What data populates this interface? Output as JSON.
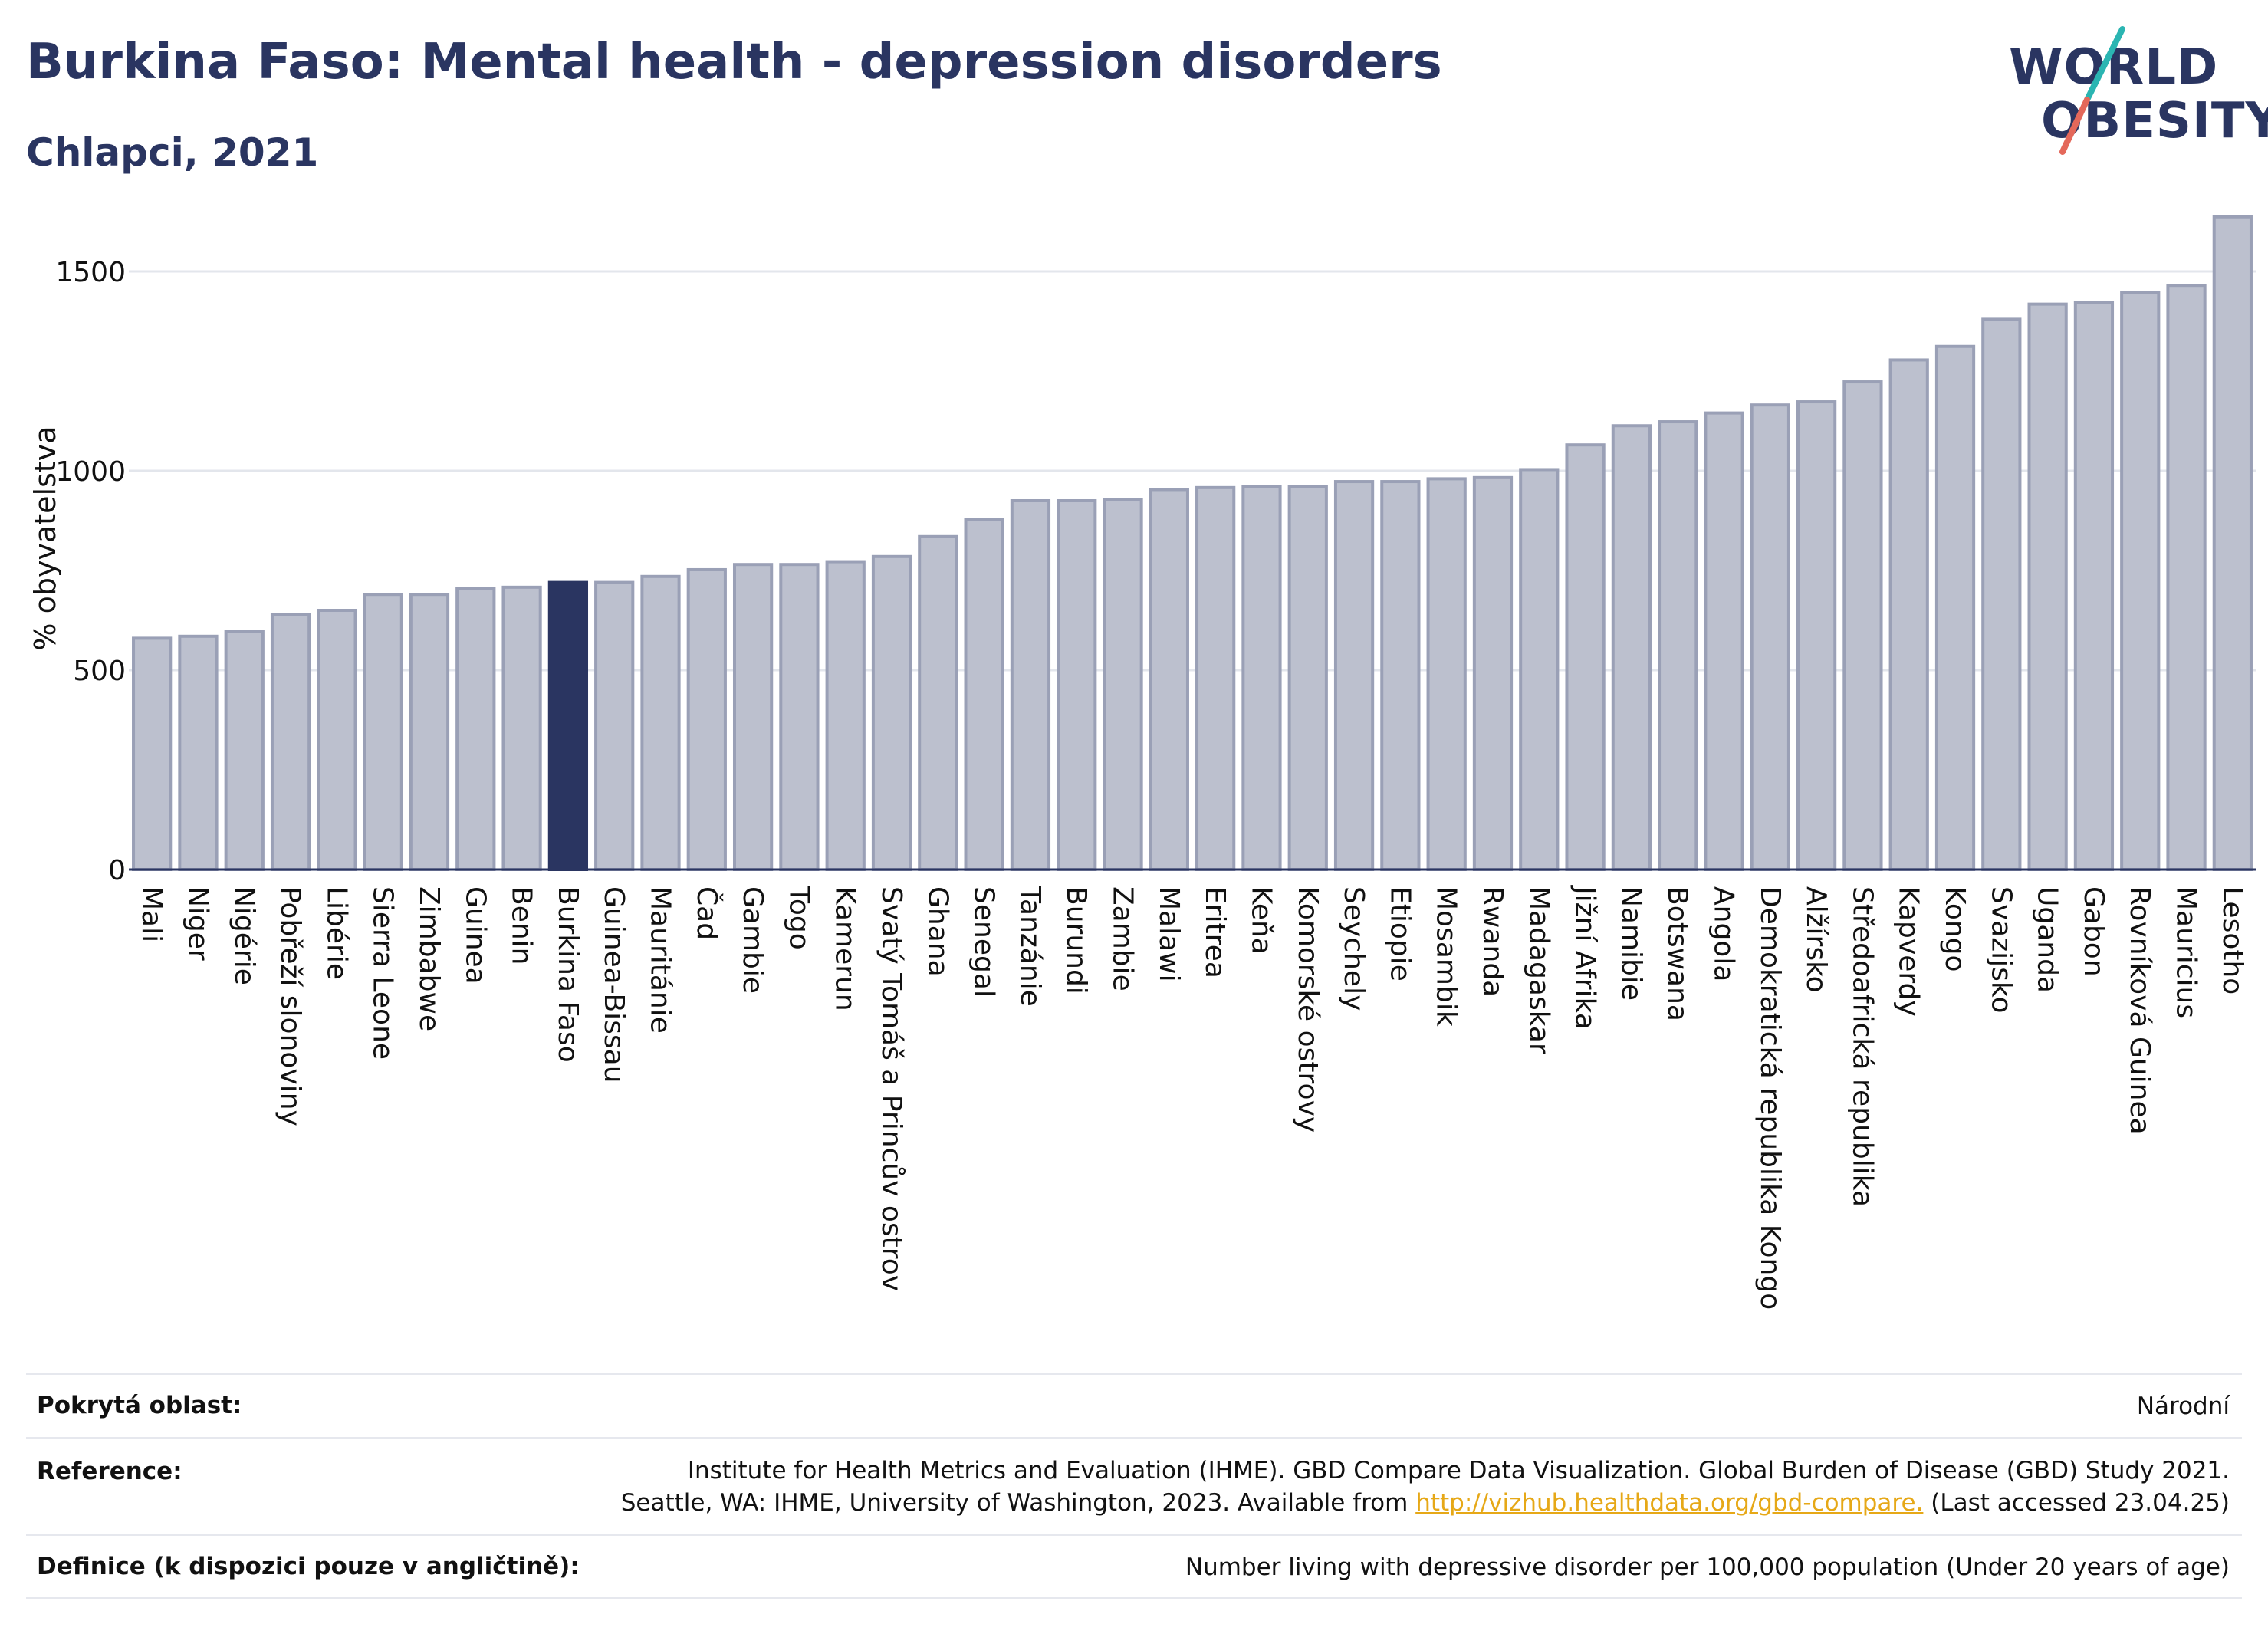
{
  "header": {
    "title": "Burkina Faso: Mental health - depression disorders",
    "subtitle": "Chlapci, 2021"
  },
  "logo": {
    "line1": "WORLD",
    "line2": "OBESITY",
    "colors": {
      "text": "#2a3561",
      "slash_top": "#2bb5b2",
      "slash_bottom": "#e4685a"
    }
  },
  "colors": {
    "bar": "#bcc0ce",
    "bar_stroke": "#9aa0b6",
    "highlight": "#2a3561",
    "grid": "#e3e6ec",
    "axis": "#2a3561",
    "link": "#e6a817"
  },
  "chart_data": {
    "type": "bar",
    "ylabel": "% obyvatelstva",
    "ylim": [
      0,
      1700
    ],
    "yticks": [
      0,
      500,
      1000,
      1500
    ],
    "grid": true,
    "highlight": "Burkina Faso",
    "categories": [
      "Mali",
      "Niger",
      "Nigérie",
      "Pobřeží slonoviny",
      "Libérie",
      "Sierra Leone",
      "Zimbabwe",
      "Guinea",
      "Benin",
      "Burkina Faso",
      "Guinea-Bissau",
      "Mauritánie",
      "Čad",
      "Gambie",
      "Togo",
      "Kamerun",
      "Svatý Tomáš a Princův ostrov",
      "Ghana",
      "Senegal",
      "Tanzánie",
      "Burundi",
      "Zambie",
      "Malawi",
      "Eritrea",
      "Keňa",
      "Komorské ostrovy",
      "Seychely",
      "Etiopie",
      "Mosambik",
      "Rwanda",
      "Madagaskar",
      "Jižní Afrika",
      "Namibie",
      "Botswana",
      "Angola",
      "Demokratická republika Kongo",
      "Alžírsko",
      "Středoafrická republika",
      "Kapverdy",
      "Kongo",
      "Svazijsko",
      "Uganda",
      "Gabon",
      "Rovníková Guinea",
      "Mauricius",
      "Lesotho"
    ],
    "values": [
      580,
      585,
      598,
      640,
      650,
      690,
      690,
      705,
      708,
      720,
      720,
      735,
      752,
      765,
      765,
      772,
      785,
      835,
      878,
      925,
      925,
      928,
      953,
      958,
      960,
      960,
      973,
      973,
      980,
      983,
      1003,
      1065,
      1113,
      1123,
      1145,
      1165,
      1173,
      1223,
      1278,
      1312,
      1380,
      1418,
      1422,
      1447,
      1465,
      1637
    ]
  },
  "footer": {
    "rows": [
      {
        "label": "Pokrytá oblast:",
        "lines": [
          "Národní"
        ]
      },
      {
        "label": "Reference:",
        "lines": [
          "Institute for Health Metrics and Evaluation (IHME). GBD Compare Data Visualization. Global Burden of Disease (GBD) Study 2021.",
          "Seattle, WA: IHME, University of Washington, 2023. Available from "
        ],
        "link": "http://vizhub.healthdata.org/gbd-compare.",
        "after_link": " (Last accessed 23.04.25)"
      },
      {
        "label": "Definice (k dispozici pouze v angličtině):",
        "lines": [
          "Number living with depressive disorder per 100,000 population (Under 20 years of age)"
        ]
      }
    ]
  }
}
